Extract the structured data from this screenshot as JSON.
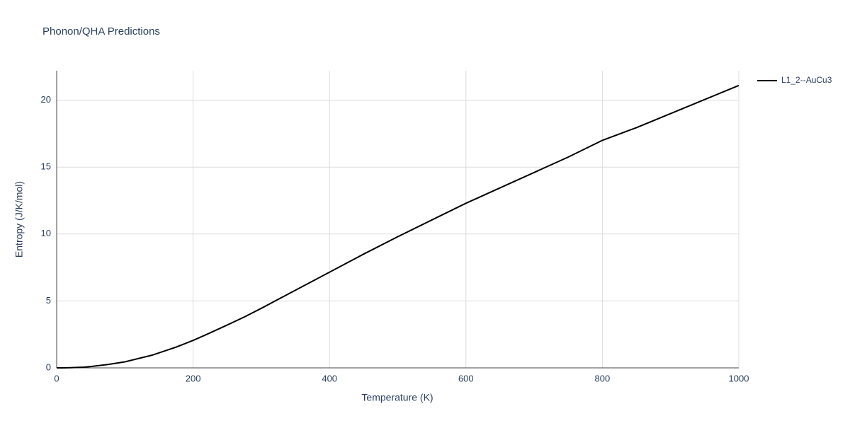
{
  "chart_data": {
    "type": "line",
    "title": "Phonon/QHA Predictions",
    "xlabel": "Temperature (K)",
    "ylabel": "Entropy (J/K/mol)",
    "x": [
      0,
      10,
      20,
      40,
      50,
      75,
      100,
      140,
      175,
      200,
      220,
      250,
      275,
      300,
      350,
      400,
      450,
      500,
      550,
      600,
      650,
      700,
      750,
      800,
      850,
      900,
      950,
      1000
    ],
    "series": [
      {
        "name": "L1_2--AuCu3",
        "color": "#000000",
        "values": [
          0,
          0,
          0.01,
          0.05,
          0.1,
          0.25,
          0.45,
          0.95,
          1.55,
          2.05,
          2.5,
          3.2,
          3.8,
          4.45,
          5.8,
          7.15,
          8.5,
          9.8,
          11.05,
          12.3,
          13.45,
          14.6,
          15.75,
          17.0,
          17.95,
          19.0,
          20.05,
          21.1
        ]
      }
    ],
    "xlim": [
      0,
      1000
    ],
    "xticks": [
      0,
      200,
      400,
      600,
      800,
      1000
    ],
    "ylim": [
      0,
      22.2
    ],
    "yticks": [
      0,
      5,
      10,
      15,
      20
    ],
    "grid": true,
    "legend": "right"
  }
}
